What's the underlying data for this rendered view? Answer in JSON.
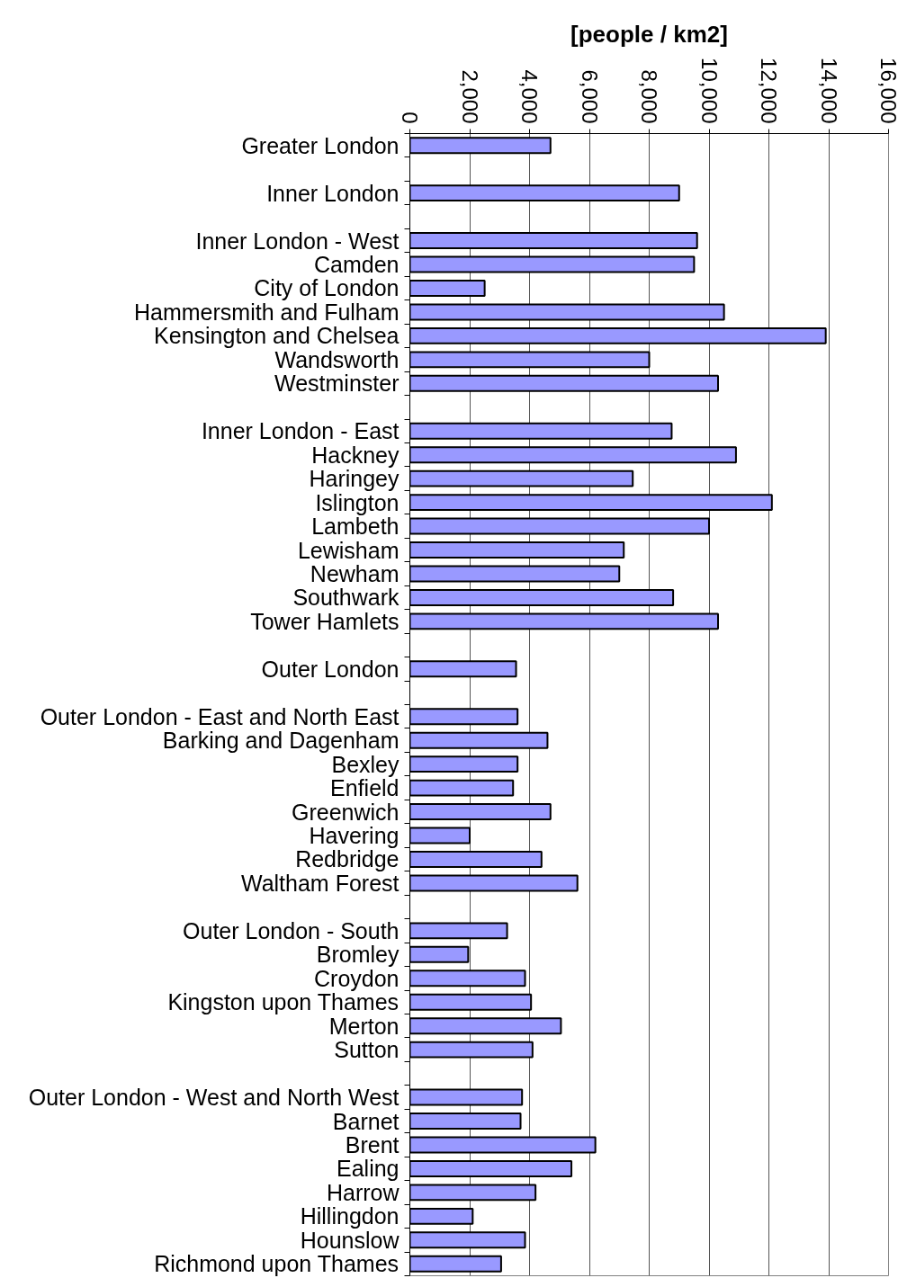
{
  "chart_data": {
    "type": "bar",
    "orientation": "horizontal",
    "xlabel": "[people / km2]",
    "categories": [
      "Greater London",
      null,
      "Inner London",
      null,
      "Inner London - West",
      "Camden",
      "City of London",
      "Hammersmith and Fulham",
      "Kensington and Chelsea",
      "Wandsworth",
      "Westminster",
      null,
      "Inner London - East",
      "Hackney",
      "Haringey",
      "Islington",
      "Lambeth",
      "Lewisham",
      "Newham",
      "Southwark",
      "Tower Hamlets",
      null,
      "Outer London",
      null,
      "Outer London - East and North East",
      "Barking and Dagenham",
      "Bexley",
      "Enfield",
      "Greenwich",
      "Havering",
      "Redbridge",
      "Waltham Forest",
      null,
      "Outer London - South",
      "Bromley",
      "Croydon",
      "Kingston upon Thames",
      "Merton",
      "Sutton",
      null,
      "Outer London - West and North West",
      "Barnet",
      "Brent",
      "Ealing",
      "Harrow",
      "Hillingdon",
      "Hounslow",
      "Richmond upon Thames"
    ],
    "values": [
      4700,
      null,
      9000,
      null,
      9600,
      9500,
      2500,
      10500,
      13900,
      8000,
      10300,
      null,
      8750,
      10900,
      7450,
      12100,
      10000,
      7150,
      7000,
      8800,
      10300,
      null,
      3550,
      null,
      3600,
      4600,
      3600,
      3450,
      4700,
      2000,
      4400,
      5600,
      null,
      3250,
      1950,
      3850,
      4050,
      5050,
      4100,
      null,
      3750,
      3700,
      6200,
      5400,
      4200,
      2100,
      3850,
      3050
    ],
    "color": "#9999ff",
    "xlim": [
      0,
      16000
    ],
    "xticks": [
      0,
      {
        "value": 2000,
        "label": "2,000"
      },
      {
        "value": 4000,
        "label": "4,000"
      },
      {
        "value": 6000,
        "label": "6,000"
      },
      {
        "value": 8000,
        "label": "8,000"
      },
      {
        "value": 10000,
        "label": "10,000"
      },
      {
        "value": 12000,
        "label": "12,000"
      },
      {
        "value": 14000,
        "label": "14,000"
      },
      {
        "value": 16000,
        "label": "16,000"
      }
    ],
    "grid": "x"
  }
}
